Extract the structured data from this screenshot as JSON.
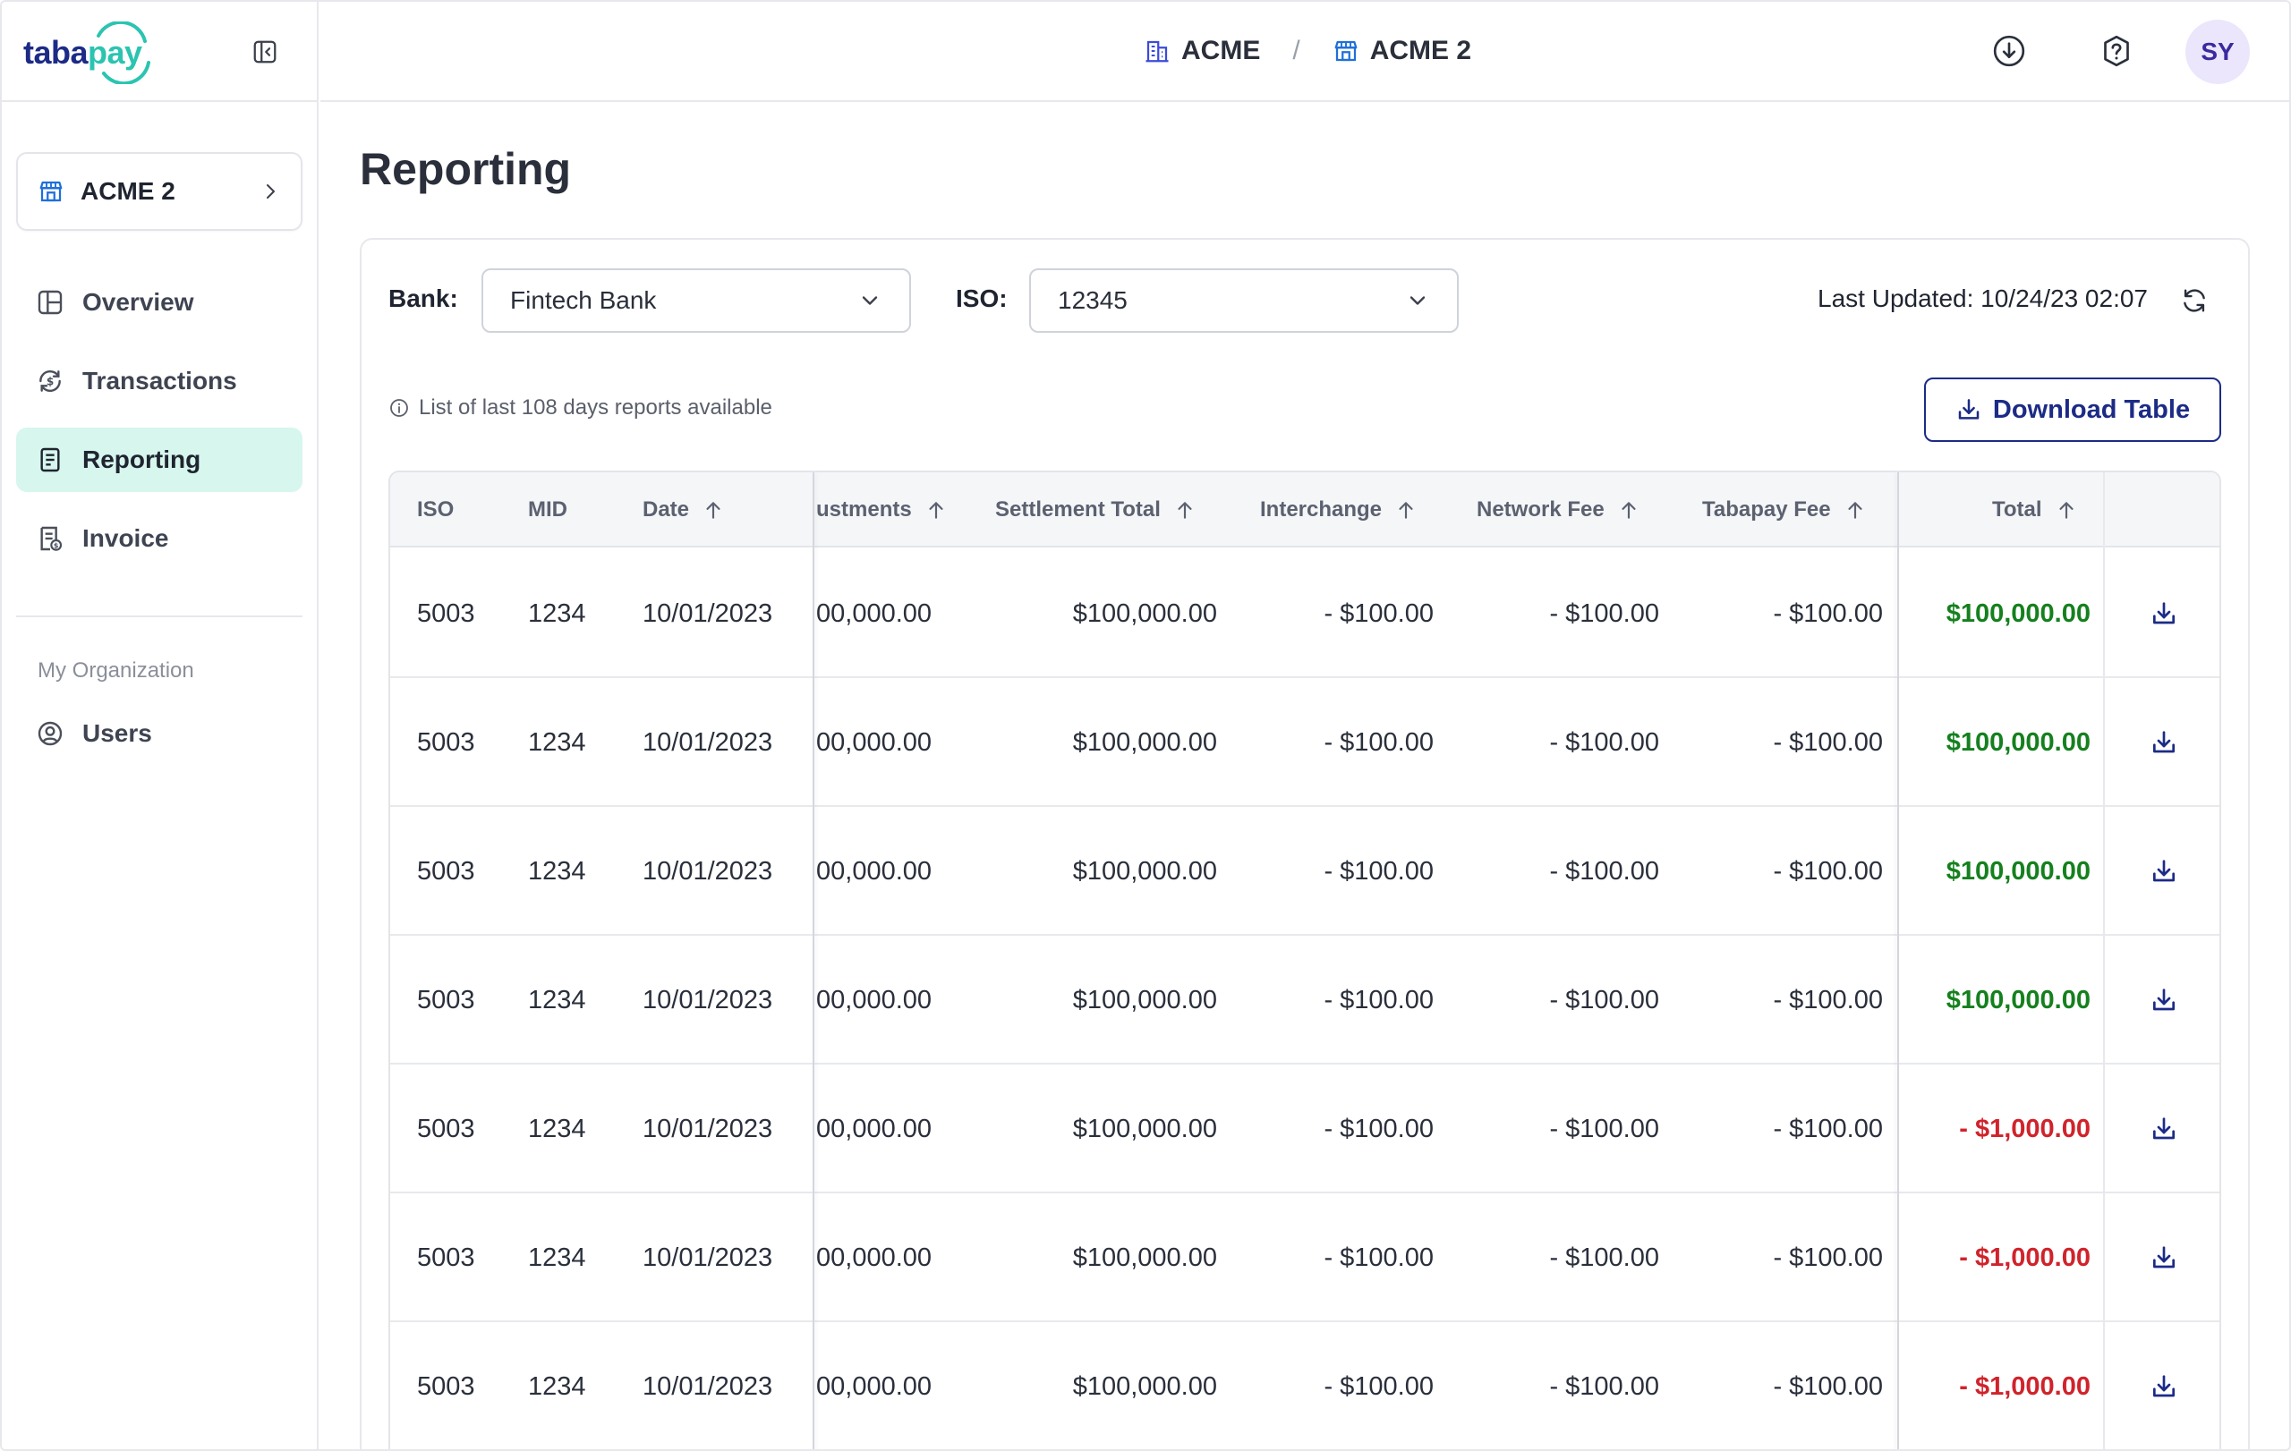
{
  "logo": {
    "text_a": "taba",
    "text_b": "pay"
  },
  "sidebar": {
    "org": {
      "label": "ACME 2"
    },
    "items": [
      {
        "label": "Overview",
        "icon": "overview-icon"
      },
      {
        "label": "Transactions",
        "icon": "transactions-icon"
      },
      {
        "label": "Reporting",
        "icon": "reporting-icon",
        "active": true
      },
      {
        "label": "Invoice",
        "icon": "invoice-icon"
      }
    ],
    "section_label": "My Organization",
    "users_label": "Users"
  },
  "topbar": {
    "crumb1": "ACME",
    "separator": "/",
    "crumb2": "ACME 2",
    "avatar": "SY"
  },
  "page": {
    "title": "Reporting"
  },
  "filters": {
    "bank_label": "Bank:",
    "bank_value": "Fintech Bank",
    "iso_label": "ISO:",
    "iso_value": "12345",
    "last_updated": "Last Updated: 10/24/23 02:07"
  },
  "note": "List of last 108 days reports available",
  "download_table_label": "Download Table",
  "table": {
    "headers": {
      "iso": "ISO",
      "mid": "MID",
      "date": "Date",
      "adjustments": "ustments",
      "settlement_total": "Settlement Total",
      "interchange": "Interchange",
      "network_fee": "Network Fee",
      "tabapay_fee": "Tabapay Fee",
      "total": "Total"
    },
    "rows": [
      {
        "iso": "5003",
        "mid": "1234",
        "date": "10/01/2023",
        "adjustments": "00,000.00",
        "settlement_total": "$100,000.00",
        "interchange": "- $100.00",
        "network_fee": "- $100.00",
        "tabapay_fee": "- $100.00",
        "total": "$100,000.00",
        "total_sign": "pos"
      },
      {
        "iso": "5003",
        "mid": "1234",
        "date": "10/01/2023",
        "adjustments": "00,000.00",
        "settlement_total": "$100,000.00",
        "interchange": "- $100.00",
        "network_fee": "- $100.00",
        "tabapay_fee": "- $100.00",
        "total": "$100,000.00",
        "total_sign": "pos"
      },
      {
        "iso": "5003",
        "mid": "1234",
        "date": "10/01/2023",
        "adjustments": "00,000.00",
        "settlement_total": "$100,000.00",
        "interchange": "- $100.00",
        "network_fee": "- $100.00",
        "tabapay_fee": "- $100.00",
        "total": "$100,000.00",
        "total_sign": "pos"
      },
      {
        "iso": "5003",
        "mid": "1234",
        "date": "10/01/2023",
        "adjustments": "00,000.00",
        "settlement_total": "$100,000.00",
        "interchange": "- $100.00",
        "network_fee": "- $100.00",
        "tabapay_fee": "- $100.00",
        "total": "$100,000.00",
        "total_sign": "pos"
      },
      {
        "iso": "5003",
        "mid": "1234",
        "date": "10/01/2023",
        "adjustments": "00,000.00",
        "settlement_total": "$100,000.00",
        "interchange": "- $100.00",
        "network_fee": "- $100.00",
        "tabapay_fee": "- $100.00",
        "total": "- $1,000.00",
        "total_sign": "neg"
      },
      {
        "iso": "5003",
        "mid": "1234",
        "date": "10/01/2023",
        "adjustments": "00,000.00",
        "settlement_total": "$100,000.00",
        "interchange": "- $100.00",
        "network_fee": "- $100.00",
        "tabapay_fee": "- $100.00",
        "total": "- $1,000.00",
        "total_sign": "neg"
      },
      {
        "iso": "5003",
        "mid": "1234",
        "date": "10/01/2023",
        "adjustments": "00,000.00",
        "settlement_total": "$100,000.00",
        "interchange": "- $100.00",
        "network_fee": "- $100.00",
        "tabapay_fee": "- $100.00",
        "total": "- $1,000.00",
        "total_sign": "neg"
      }
    ]
  },
  "colors": {
    "brand_navy": "#1c2b86",
    "brand_teal": "#2bc4b1",
    "active_nav_bg": "#d7f6ee",
    "positive": "#15801e",
    "negative": "#d0232b"
  }
}
